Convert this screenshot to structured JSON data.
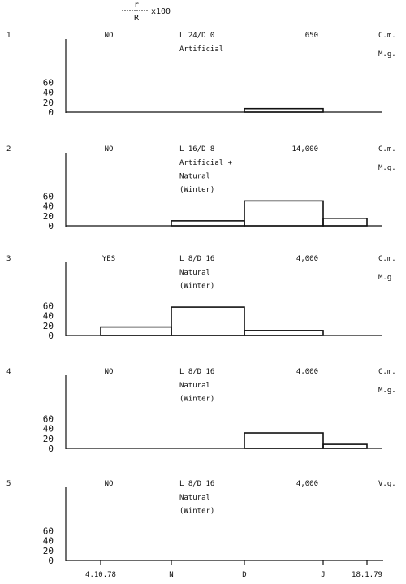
{
  "ratio_label": {
    "numerator": "r",
    "denominator": "R",
    "multiplier": "x100"
  },
  "x_tick_labels": [
    "4.10.78",
    "N",
    "D",
    "J",
    "18.1.79"
  ],
  "chart_data": [
    {
      "type": "bar",
      "number": "1",
      "code": "NO",
      "photoperiod": "L 24/D 0",
      "light": [
        "Artificial"
      ],
      "count": "650",
      "tags": [
        "C.m.",
        "M.g."
      ],
      "yticks": [
        0,
        20,
        40,
        60
      ],
      "ylim": [
        0,
        80
      ],
      "xticks": [
        "4.10.78",
        "N",
        "D",
        "J",
        "18.1.79"
      ],
      "bins": [
        {
          "from": "D",
          "to": "J",
          "value": 7
        }
      ]
    },
    {
      "type": "bar",
      "number": "2",
      "code": "NO",
      "photoperiod": "L 16/D 8",
      "light": [
        "Artificial +",
        "Natural",
        "(Winter)"
      ],
      "count": "14,000",
      "tags": [
        "C.m.",
        "M.g."
      ],
      "yticks": [
        0,
        20,
        40,
        60
      ],
      "ylim": [
        0,
        80
      ],
      "xticks": [
        "4.10.78",
        "N",
        "D",
        "J",
        "18.1.79"
      ],
      "bins": [
        {
          "from": "N",
          "to": "D",
          "value": 10
        },
        {
          "from": "D",
          "to": "J",
          "value": 50
        },
        {
          "from": "J",
          "to": "18.1.79",
          "value": 15
        }
      ]
    },
    {
      "type": "bar",
      "number": "3",
      "code": "YES",
      "photoperiod": "L 8/D 16",
      "light": [
        "Natural",
        "(Winter)"
      ],
      "count": "4,000",
      "tags": [
        "C.m.",
        "M.g"
      ],
      "yticks": [
        0,
        20,
        40,
        60
      ],
      "ylim": [
        0,
        80
      ],
      "xticks": [
        "4.10.78",
        "N",
        "D",
        "J",
        "18.1.79"
      ],
      "bins": [
        {
          "from": "4.10.78",
          "to": "N",
          "value": 17
        },
        {
          "from": "N",
          "to": "D",
          "value": 57
        },
        {
          "from": "D",
          "to": "J",
          "value": 10
        }
      ]
    },
    {
      "type": "bar",
      "number": "4",
      "code": "NO",
      "photoperiod": "L 8/D 16",
      "light": [
        "Natural",
        "(Winter)"
      ],
      "count": "4,000",
      "tags": [
        "C.m.",
        "M.g."
      ],
      "yticks": [
        0,
        20,
        40,
        60
      ],
      "ylim": [
        0,
        80
      ],
      "xticks": [
        "4.10.78",
        "N",
        "D",
        "J",
        "18.1.79"
      ],
      "bins": [
        {
          "from": "D",
          "to": "J",
          "value": 31
        },
        {
          "from": "J",
          "to": "18.1.79",
          "value": 8
        }
      ]
    },
    {
      "type": "bar",
      "number": "5",
      "code": "NO",
      "photoperiod": "L 8/D 16",
      "light": [
        "Natural",
        "(Winter)"
      ],
      "count": "4,000",
      "tags": [
        "V.g."
      ],
      "yticks": [
        0,
        20,
        40,
        60
      ],
      "ylim": [
        0,
        80
      ],
      "xticks": [
        "4.10.78",
        "N",
        "D",
        "J",
        "18.1.79"
      ],
      "bins": []
    }
  ]
}
